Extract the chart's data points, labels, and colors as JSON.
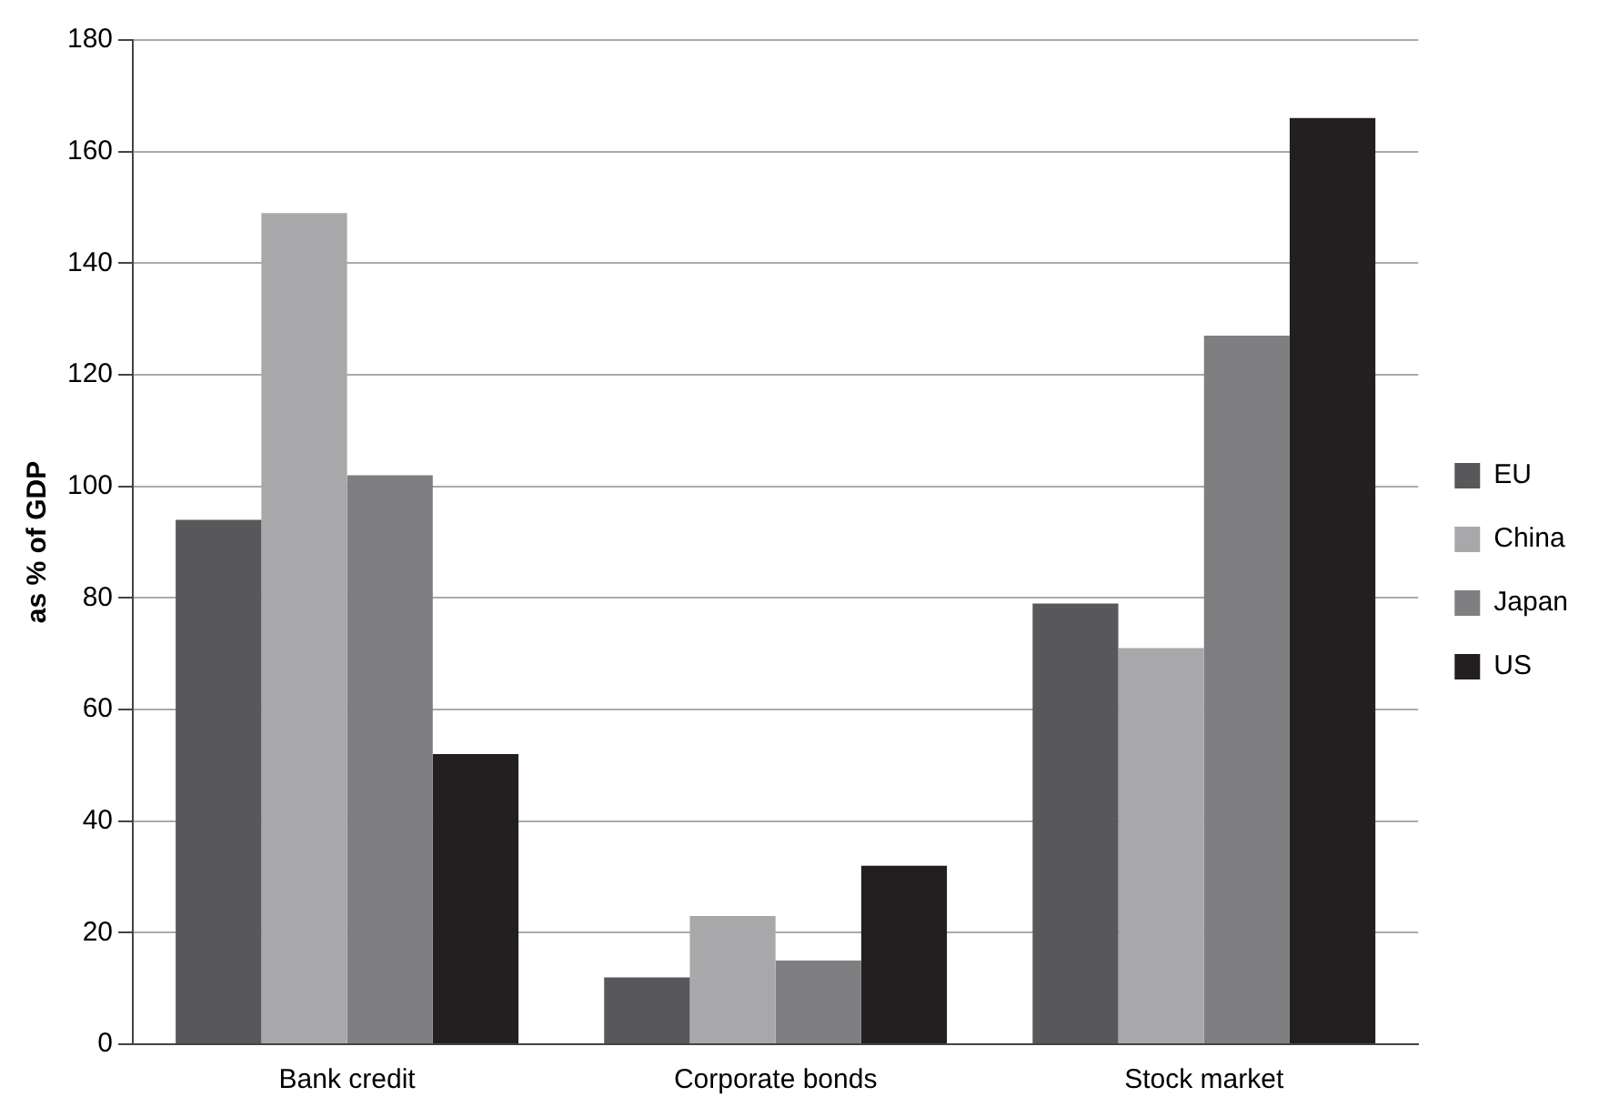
{
  "chart_data": {
    "type": "bar",
    "ylabel": "as % of GDP",
    "categories": [
      "Bank credit",
      "Corporate bonds",
      "Stock market"
    ],
    "series": [
      {
        "name": "EU",
        "color": "#58585a",
        "values": [
          94,
          12,
          79
        ]
      },
      {
        "name": "China",
        "color": "#a8a8aa",
        "values": [
          149,
          23,
          71
        ]
      },
      {
        "name": "Japan",
        "color": "#7f7f81",
        "values": [
          102,
          15,
          127
        ]
      },
      {
        "name": "US",
        "color": "#231f20",
        "values": [
          52,
          32,
          166
        ]
      }
    ],
    "ylim": [
      0,
      180
    ],
    "yticks": [
      0,
      20,
      40,
      60,
      80,
      100,
      120,
      140,
      160,
      180
    ],
    "grid": "y",
    "legend": "right"
  }
}
